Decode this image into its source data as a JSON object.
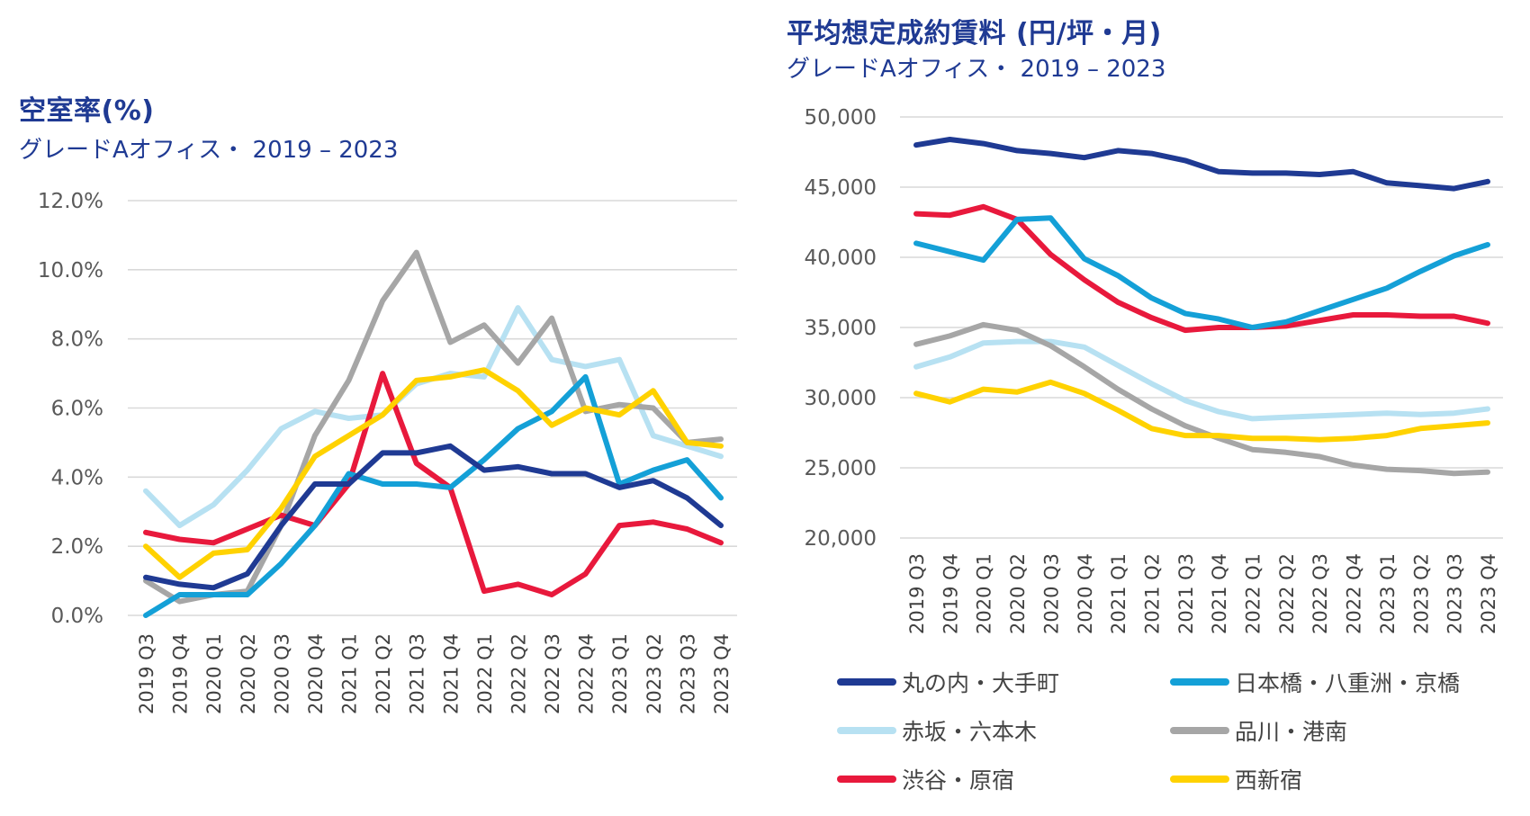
{
  "colors": {
    "丸の内・大手町": "#1f3a93",
    "日本橋・八重洲・京橋": "#14a0d7",
    "赤坂・六本木": "#b7e1f2",
    "品川・港南": "#a6a6a6",
    "渋谷・原宿": "#e8193c",
    "西新宿": "#ffd200"
  },
  "legend": {
    "items": [
      {
        "label": "丸の内・大手町",
        "color": "#1f3a93"
      },
      {
        "label": "日本橋・八重洲・京橋",
        "color": "#14a0d7"
      },
      {
        "label": "赤坂・六本木",
        "color": "#b7e1f2"
      },
      {
        "label": "品川・港南",
        "color": "#a6a6a6"
      },
      {
        "label": "渋谷・原宿",
        "color": "#e8193c"
      },
      {
        "label": "西新宿",
        "color": "#ffd200"
      }
    ]
  },
  "chart_data": [
    {
      "type": "line",
      "title": "空室率(%)",
      "subtitle": "グレードAオフィス・ 2019 – 2023",
      "categories": [
        "2019 Q3",
        "2019 Q4",
        "2020 Q1",
        "2020 Q2",
        "2020 Q3",
        "2020 Q4",
        "2021 Q1",
        "2021 Q2",
        "2021 Q3",
        "2021 Q4",
        "2022 Q1",
        "2022 Q2",
        "2022 Q3",
        "2022 Q4",
        "2023 Q1",
        "2023 Q2",
        "2023 Q3",
        "2023 Q4"
      ],
      "ylim": [
        0,
        12
      ],
      "yticks": [
        0,
        2,
        4,
        6,
        8,
        10,
        12
      ],
      "ytick_labels": [
        "0.0%",
        "2.0%",
        "4.0%",
        "6.0%",
        "8.0%",
        "10.0%",
        "12.0%"
      ],
      "grid": true,
      "series": [
        {
          "name": "赤坂・六本木",
          "values": [
            3.6,
            2.6,
            3.2,
            4.2,
            5.4,
            5.9,
            5.7,
            5.8,
            6.7,
            7.0,
            6.9,
            8.9,
            7.4,
            7.2,
            7.4,
            5.2,
            4.9,
            4.6
          ]
        },
        {
          "name": "品川・港南",
          "values": [
            1.0,
            0.4,
            0.6,
            0.7,
            2.6,
            5.2,
            6.8,
            9.1,
            10.5,
            7.9,
            8.4,
            7.3,
            8.6,
            5.9,
            6.1,
            6.0,
            5.0,
            5.1
          ]
        },
        {
          "name": "渋谷・原宿",
          "values": [
            2.4,
            2.2,
            2.1,
            2.5,
            2.9,
            2.6,
            3.8,
            7.0,
            4.4,
            3.7,
            0.7,
            0.9,
            0.6,
            1.2,
            2.6,
            2.7,
            2.5,
            2.1
          ]
        },
        {
          "name": "日本橋・八重洲・京橋",
          "values": [
            0.0,
            0.6,
            0.6,
            0.6,
            1.5,
            2.6,
            4.1,
            3.8,
            3.8,
            3.7,
            4.5,
            5.4,
            5.9,
            6.9,
            3.8,
            4.2,
            4.5,
            3.4
          ]
        },
        {
          "name": "丸の内・大手町",
          "values": [
            1.1,
            0.9,
            0.8,
            1.2,
            2.6,
            3.8,
            3.8,
            4.7,
            4.7,
            4.9,
            4.2,
            4.3,
            4.1,
            4.1,
            3.7,
            3.9,
            3.4,
            2.6
          ]
        },
        {
          "name": "西新宿",
          "values": [
            2.0,
            1.1,
            1.8,
            1.9,
            3.1,
            4.6,
            5.2,
            5.8,
            6.8,
            6.9,
            7.1,
            6.5,
            5.5,
            6.0,
            5.8,
            6.5,
            5.0,
            4.9
          ]
        }
      ]
    },
    {
      "type": "line",
      "title": "平均想定成約賃料 (円/坪・月)",
      "subtitle": "グレードAオフィス・ 2019 – 2023",
      "categories": [
        "2019 Q3",
        "2019 Q4",
        "2020 Q1",
        "2020 Q2",
        "2020 Q3",
        "2020 Q4",
        "2021 Q1",
        "2021 Q2",
        "2021 Q3",
        "2021 Q4",
        "2022 Q1",
        "2022 Q2",
        "2022 Q3",
        "2022 Q4",
        "2023 Q1",
        "2023 Q2",
        "2023 Q3",
        "2023 Q4"
      ],
      "ylim": [
        20000,
        50000
      ],
      "yticks": [
        20000,
        25000,
        30000,
        35000,
        40000,
        45000,
        50000
      ],
      "ytick_labels": [
        "20,000",
        "25,000",
        "30,000",
        "35,000",
        "40,000",
        "45,000",
        "50,000"
      ],
      "grid": true,
      "legend_position": "bottom",
      "series": [
        {
          "name": "赤坂・六本木",
          "values": [
            32200,
            32900,
            33900,
            34000,
            34000,
            33600,
            32300,
            31000,
            29800,
            29000,
            28500,
            28600,
            28700,
            28800,
            28900,
            28800,
            28900,
            29200
          ]
        },
        {
          "name": "品川・港南",
          "values": [
            33800,
            34400,
            35200,
            34800,
            33700,
            32200,
            30600,
            29200,
            28000,
            27100,
            26300,
            26100,
            25800,
            25200,
            24900,
            24800,
            24600,
            24700
          ]
        },
        {
          "name": "渋谷・原宿",
          "values": [
            43100,
            43000,
            43600,
            42700,
            40200,
            38400,
            36800,
            35700,
            34800,
            35000,
            35000,
            35100,
            35500,
            35900,
            35900,
            35800,
            35800,
            35300
          ]
        },
        {
          "name": "日本橋・八重洲・京橋",
          "values": [
            41000,
            40400,
            39800,
            42700,
            42800,
            39900,
            38700,
            37100,
            36000,
            35600,
            35000,
            35400,
            36200,
            37000,
            37800,
            39000,
            40100,
            40900
          ]
        },
        {
          "name": "丸の内・大手町",
          "values": [
            48000,
            48400,
            48100,
            47600,
            47400,
            47100,
            47600,
            47400,
            46900,
            46100,
            46000,
            46000,
            45900,
            46100,
            45300,
            45100,
            44900,
            45400
          ]
        },
        {
          "name": "西新宿",
          "values": [
            30300,
            29700,
            30600,
            30400,
            31100,
            30300,
            29100,
            27800,
            27300,
            27300,
            27100,
            27100,
            27000,
            27100,
            27300,
            27800,
            28000,
            28200
          ]
        }
      ]
    }
  ]
}
